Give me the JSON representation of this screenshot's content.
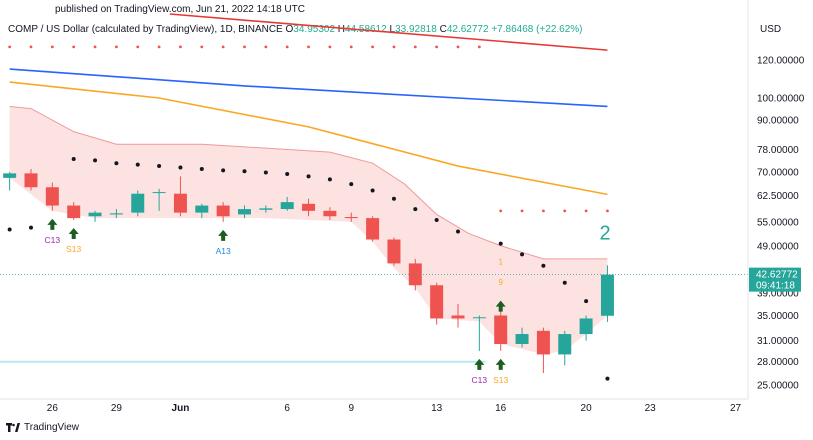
{
  "published": "published on TradingView.com, Jun 21, 2022 14:18 UTC",
  "header": {
    "symbol": "COMP / US Dollar (calculated by TradingView), 1D, BINANCE",
    "o_label": "O",
    "o_value": "34.95302",
    "h_label": "H",
    "h_value": "44.58612",
    "l_label": "L",
    "l_value": "33.92818",
    "c_label": "C",
    "c_value": "42.62772",
    "change": "+7.86468 (+22.62%)"
  },
  "currency": "USD",
  "footer": {
    "brand": "TradingView"
  },
  "colors": {
    "up": "#26a69a",
    "down": "#ef5350",
    "ma_red": "#e53935",
    "ma_blue": "#2962ff",
    "ma_orange": "#f9a825",
    "band": "#fde2e2",
    "band_line": "#ef9a9a",
    "support": "#b2ebf2",
    "buy_arrow": "#1b5e20",
    "td_purple": "#9c27b0",
    "td_orange": "#f9a825",
    "td_blue": "#1e88e5",
    "count_green": "#26a69a"
  },
  "chart_data": {
    "type": "candlestick",
    "title": "",
    "xlabel": "",
    "ylabel": "",
    "y_scale": "log",
    "ylim": [
      23.5,
      150
    ],
    "grid": false,
    "y_ticks": [
      "120.00000",
      "100.00000",
      "90.00000",
      "78.00000",
      "70.00000",
      "62.50000",
      "55.00000",
      "49.00000",
      "39.00000",
      "35.00000",
      "31.00000",
      "28.00000",
      "25.00000"
    ],
    "x_ticks": [
      {
        "day": 1,
        "label": "26"
      },
      {
        "day": 4,
        "label": "29"
      },
      {
        "day": 7,
        "label": "Jun"
      },
      {
        "day": 12,
        "label": "6"
      },
      {
        "day": 15,
        "label": "9"
      },
      {
        "day": 19,
        "label": "13"
      },
      {
        "day": 22,
        "label": "16"
      },
      {
        "day": 26,
        "label": "20"
      },
      {
        "day": 29,
        "label": "23"
      },
      {
        "day": 33,
        "label": "27"
      }
    ],
    "candles": [
      {
        "day": -1,
        "o": 68.0,
        "h": 70.0,
        "l": 64.0,
        "c": 69.5
      },
      {
        "day": 0,
        "o": 69.5,
        "h": 71.0,
        "l": 64.0,
        "c": 65.0
      },
      {
        "day": 1,
        "o": 65.0,
        "h": 66.5,
        "l": 58.0,
        "c": 59.5
      },
      {
        "day": 2,
        "o": 59.5,
        "h": 60.5,
        "l": 55.5,
        "c": 56.0
      },
      {
        "day": 3,
        "o": 56.5,
        "h": 58.0,
        "l": 55.0,
        "c": 57.5
      },
      {
        "day": 4,
        "o": 57.0,
        "h": 58.5,
        "l": 56.0,
        "c": 57.3
      },
      {
        "day": 5,
        "o": 57.5,
        "h": 64.0,
        "l": 56.5,
        "c": 63.0
      },
      {
        "day": 6,
        "o": 63.5,
        "h": 64.5,
        "l": 58.0,
        "c": 63.5
      },
      {
        "day": 7,
        "o": 63.0,
        "h": 68.5,
        "l": 56.5,
        "c": 57.5
      },
      {
        "day": 8,
        "o": 57.5,
        "h": 60.0,
        "l": 56.0,
        "c": 59.5
      },
      {
        "day": 9,
        "o": 59.5,
        "h": 60.5,
        "l": 55.0,
        "c": 56.5
      },
      {
        "day": 10,
        "o": 57.0,
        "h": 59.5,
        "l": 56.0,
        "c": 58.5
      },
      {
        "day": 11,
        "o": 58.3,
        "h": 59.5,
        "l": 57.5,
        "c": 58.7
      },
      {
        "day": 12,
        "o": 58.5,
        "h": 62.0,
        "l": 58.0,
        "c": 60.5
      },
      {
        "day": 13,
        "o": 60.0,
        "h": 61.5,
        "l": 56.5,
        "c": 58.0
      },
      {
        "day": 14,
        "o": 58.0,
        "h": 59.0,
        "l": 55.5,
        "c": 56.5
      },
      {
        "day": 15,
        "o": 56.3,
        "h": 57.5,
        "l": 55.0,
        "c": 56.0
      },
      {
        "day": 16,
        "o": 56.0,
        "h": 56.5,
        "l": 50.0,
        "c": 50.5
      },
      {
        "day": 17,
        "o": 50.5,
        "h": 51.0,
        "l": 44.5,
        "c": 45.0
      },
      {
        "day": 18,
        "o": 45.0,
        "h": 46.0,
        "l": 39.5,
        "c": 40.5
      },
      {
        "day": 19,
        "o": 40.5,
        "h": 41.0,
        "l": 33.5,
        "c": 34.5
      },
      {
        "day": 20,
        "o": 35.0,
        "h": 37.0,
        "l": 33.0,
        "c": 34.5
      },
      {
        "day": 21,
        "o": 34.7,
        "h": 35.0,
        "l": 29.5,
        "c": 34.7
      },
      {
        "day": 22,
        "o": 35.0,
        "h": 36.0,
        "l": 29.5,
        "c": 30.5
      },
      {
        "day": 23,
        "o": 30.5,
        "h": 33.0,
        "l": 30.0,
        "c": 32.0
      },
      {
        "day": 24,
        "o": 32.5,
        "h": 33.0,
        "l": 26.5,
        "c": 29.0
      },
      {
        "day": 25,
        "o": 29.0,
        "h": 32.5,
        "l": 27.5,
        "c": 32.0
      },
      {
        "day": 26,
        "o": 32.0,
        "h": 35.0,
        "l": 31.0,
        "c": 34.5
      },
      {
        "day": 27,
        "o": 34.95302,
        "h": 44.58612,
        "l": 33.92818,
        "c": 42.62772
      }
    ],
    "ma_red": [
      {
        "day": 6.5,
        "v": 160
      },
      {
        "day": 27,
        "v": 126
      }
    ],
    "ma_blue": [
      {
        "day": -1,
        "v": 115
      },
      {
        "day": 10,
        "v": 106
      },
      {
        "day": 27,
        "v": 96
      }
    ],
    "ma_orange": [
      {
        "day": -1,
        "v": 108
      },
      {
        "day": 6,
        "v": 100
      },
      {
        "day": 13,
        "v": 87
      },
      {
        "day": 20,
        "v": 72
      },
      {
        "day": 27,
        "v": 62.8
      }
    ],
    "band_upper": [
      {
        "day": -1,
        "v": 96
      },
      {
        "day": 0,
        "v": 95
      },
      {
        "day": 2,
        "v": 85
      },
      {
        "day": 4,
        "v": 80
      },
      {
        "day": 8,
        "v": 80
      },
      {
        "day": 10,
        "v": 79
      },
      {
        "day": 14,
        "v": 77
      },
      {
        "day": 16,
        "v": 73
      },
      {
        "day": 17.5,
        "v": 66
      },
      {
        "day": 19,
        "v": 57
      },
      {
        "day": 20.5,
        "v": 52
      },
      {
        "day": 22,
        "v": 49
      },
      {
        "day": 24,
        "v": 46
      },
      {
        "day": 27,
        "v": 46
      }
    ],
    "band_lower": [
      {
        "day": -1,
        "v": 68
      },
      {
        "day": 1,
        "v": 58
      },
      {
        "day": 3,
        "v": 56
      },
      {
        "day": 7,
        "v": 56
      },
      {
        "day": 11,
        "v": 56
      },
      {
        "day": 15,
        "v": 55
      },
      {
        "day": 16,
        "v": 50
      },
      {
        "day": 17,
        "v": 44
      },
      {
        "day": 18,
        "v": 40
      },
      {
        "day": 19,
        "v": 34.5
      },
      {
        "day": 21,
        "v": 34
      },
      {
        "day": 22,
        "v": 30.5
      },
      {
        "day": 24,
        "v": 29
      },
      {
        "day": 25,
        "v": 29.5
      },
      {
        "day": 26,
        "v": 32
      },
      {
        "day": 27,
        "v": 35
      }
    ],
    "sar_dots": [
      {
        "day": -1,
        "v": 53
      },
      {
        "day": 0,
        "v": 53.5
      },
      {
        "day": 1,
        "v": 55
      },
      {
        "day": 2,
        "v": 74.5
      },
      {
        "day": 3,
        "v": 74
      },
      {
        "day": 4,
        "v": 73
      },
      {
        "day": 5,
        "v": 72.5
      },
      {
        "day": 6,
        "v": 72
      },
      {
        "day": 7,
        "v": 71.5
      },
      {
        "day": 8,
        "v": 71
      },
      {
        "day": 9,
        "v": 70.5
      },
      {
        "day": 10,
        "v": 70.2
      },
      {
        "day": 11,
        "v": 69.8
      },
      {
        "day": 12,
        "v": 69.3
      },
      {
        "day": 13,
        "v": 68.5
      },
      {
        "day": 14,
        "v": 67.5
      },
      {
        "day": 15,
        "v": 66
      },
      {
        "day": 16,
        "v": 64
      },
      {
        "day": 17,
        "v": 61.5
      },
      {
        "day": 18,
        "v": 58.5
      },
      {
        "day": 19,
        "v": 55.5
      },
      {
        "day": 20,
        "v": 52.5
      },
      {
        "day": 22,
        "v": 49.5
      },
      {
        "day": 23,
        "v": 47
      },
      {
        "day": 24,
        "v": 44.5
      },
      {
        "day": 25,
        "v": 41
      },
      {
        "day": 26,
        "v": 37.5
      },
      {
        "day": 27,
        "v": 25.8
      }
    ],
    "resistance_dots": [
      {
        "from": -1,
        "to": 21,
        "v": 128
      },
      {
        "from": 22,
        "to": 27,
        "v": 58
      }
    ],
    "support_level": 28.0,
    "current_price": "42.62772",
    "countdown": "09:41:18",
    "td_count_label": "2",
    "signals": [
      {
        "day": 1,
        "label": "C13",
        "color": "purple"
      },
      {
        "day": 2,
        "label": "S13",
        "color": "orange"
      },
      {
        "day": 9,
        "label": "A13",
        "color": "blue"
      },
      {
        "day": 21,
        "label": "C13",
        "color": "purple"
      },
      {
        "day": 22,
        "label": "S13",
        "color": "orange"
      }
    ],
    "small_labels": [
      {
        "day": 22,
        "text": "9",
        "v": 40.5
      },
      {
        "day": 22,
        "text": "1",
        "v": 44.8
      }
    ]
  }
}
